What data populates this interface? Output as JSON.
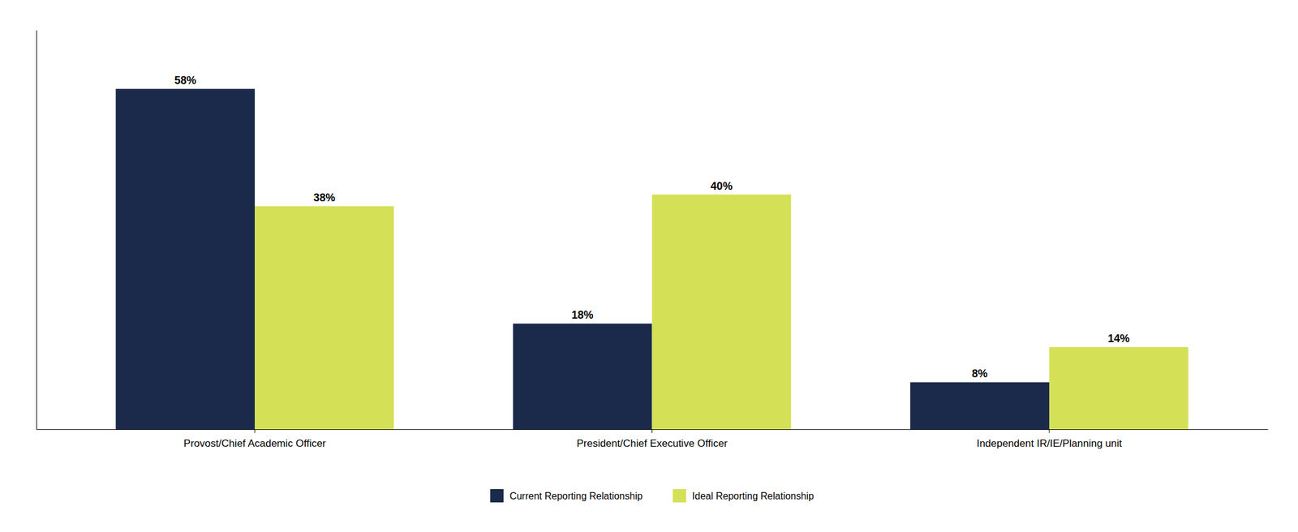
{
  "chart_data": {
    "type": "bar",
    "categories": [
      "Provost/Chief Academic Officer",
      "President/Chief Executive Officer",
      "Independent IR/IE/Planning unit"
    ],
    "series": [
      {
        "name": "Current Reporting Relationship",
        "color": "#1B2A4A",
        "values": [
          58,
          18,
          8
        ],
        "value_labels": [
          "58%",
          "18%",
          "8%"
        ]
      },
      {
        "name": "Ideal Reporting Relationship",
        "color": "#D4E157",
        "values": [
          38,
          40,
          14
        ],
        "value_labels": [
          "38%",
          "40%",
          "14%"
        ]
      }
    ],
    "ylim": [
      0,
      68
    ],
    "data_labels": true,
    "tick_labels": "x",
    "legend": "bottom",
    "grid": false
  }
}
